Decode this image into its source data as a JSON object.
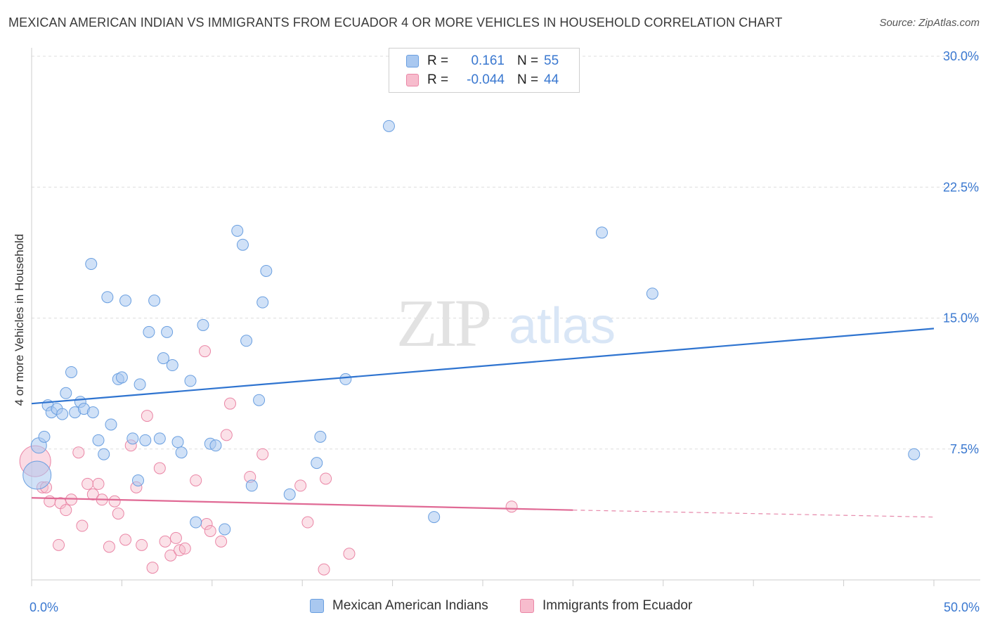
{
  "title": "MEXICAN AMERICAN INDIAN VS IMMIGRANTS FROM ECUADOR 4 OR MORE VEHICLES IN HOUSEHOLD CORRELATION CHART",
  "source": "Source: ZipAtlas.com",
  "watermark": {
    "zip": "ZIP",
    "atlas": "atlas"
  },
  "legend": {
    "rows": [
      {
        "r_label": "R =",
        "r_value": "0.161",
        "n_label": "N =",
        "n_value": "55",
        "color": "#a9c8f0",
        "border": "#6a9fe0"
      },
      {
        "r_label": "R =",
        "r_value": "-0.044",
        "n_label": "N =",
        "n_value": "44",
        "color": "#f7bccd",
        "border": "#ea86a6"
      }
    ]
  },
  "colors": {
    "blue_fill": "#a9c8f0",
    "blue_stroke": "#6a9fe0",
    "blue_line": "#2f74d0",
    "pink_fill": "#f7bccd",
    "pink_stroke": "#ea86a6",
    "pink_line": "#e06a95",
    "axis_text": "#3a78d0",
    "grid": "#dddddd"
  },
  "chart_data": {
    "type": "scatter",
    "title": "MEXICAN AMERICAN INDIAN VS IMMIGRANTS FROM ECUADOR 4 OR MORE VEHICLES IN HOUSEHOLD CORRELATION CHART",
    "xlabel": "",
    "ylabel": "4 or more Vehicles in Household",
    "xlim": [
      0,
      50
    ],
    "ylim": [
      0,
      30
    ],
    "x_ticks": [
      0,
      50
    ],
    "x_tick_labels": [
      "0.0%",
      "50.0%"
    ],
    "y_ticks": [
      7.5,
      15,
      22.5,
      30
    ],
    "y_tick_labels": [
      "7.5%",
      "15.0%",
      "22.5%",
      "30.0%"
    ],
    "grid": true,
    "legend_position": "top-center",
    "series": [
      {
        "name": "Mexican American Indians",
        "color": "#a9c8f0",
        "trend": {
          "x": [
            0,
            50
          ],
          "y": [
            10.1,
            14.4
          ]
        },
        "points": [
          [
            0.4,
            7.7
          ],
          [
            0.3,
            6.0
          ],
          [
            0.7,
            8.2
          ],
          [
            0.9,
            10.0
          ],
          [
            1.1,
            9.6
          ],
          [
            1.4,
            9.8
          ],
          [
            1.7,
            9.5
          ],
          [
            1.9,
            10.7
          ],
          [
            2.2,
            11.9
          ],
          [
            2.4,
            9.6
          ],
          [
            2.7,
            10.2
          ],
          [
            2.9,
            9.8
          ],
          [
            3.4,
            9.6
          ],
          [
            3.3,
            18.1
          ],
          [
            3.7,
            8.0
          ],
          [
            4.0,
            7.2
          ],
          [
            4.2,
            16.2
          ],
          [
            4.4,
            8.9
          ],
          [
            4.8,
            11.5
          ],
          [
            5.0,
            11.6
          ],
          [
            5.2,
            16.0
          ],
          [
            5.6,
            8.1
          ],
          [
            5.9,
            5.7
          ],
          [
            6.0,
            11.2
          ],
          [
            6.3,
            8.0
          ],
          [
            6.5,
            14.2
          ],
          [
            6.8,
            16.0
          ],
          [
            7.1,
            8.1
          ],
          [
            7.3,
            12.7
          ],
          [
            7.5,
            14.2
          ],
          [
            7.8,
            12.3
          ],
          [
            8.1,
            7.9
          ],
          [
            8.3,
            7.3
          ],
          [
            8.8,
            11.4
          ],
          [
            9.1,
            3.3
          ],
          [
            9.5,
            14.6
          ],
          [
            9.9,
            7.8
          ],
          [
            10.2,
            7.7
          ],
          [
            10.7,
            2.9
          ],
          [
            11.4,
            20.0
          ],
          [
            11.7,
            19.2
          ],
          [
            11.9,
            13.7
          ],
          [
            12.2,
            5.4
          ],
          [
            12.6,
            10.3
          ],
          [
            12.8,
            15.9
          ],
          [
            13.0,
            17.7
          ],
          [
            14.3,
            4.9
          ],
          [
            15.8,
            6.7
          ],
          [
            16.0,
            8.2
          ],
          [
            17.4,
            11.5
          ],
          [
            19.8,
            26.0
          ],
          [
            22.3,
            3.6
          ],
          [
            31.6,
            19.9
          ],
          [
            34.4,
            16.4
          ],
          [
            48.9,
            7.2
          ]
        ]
      },
      {
        "name": "Immigrants from Ecuador",
        "color": "#f7bccd",
        "trend": {
          "x": [
            0,
            30
          ],
          "y": [
            4.7,
            4.0
          ]
        },
        "trend_dashed": {
          "x": [
            30,
            50
          ],
          "y": [
            4.0,
            3.6
          ]
        },
        "points": [
          [
            0.2,
            6.8
          ],
          [
            0.6,
            5.3
          ],
          [
            0.8,
            5.3
          ],
          [
            1.0,
            4.5
          ],
          [
            1.5,
            2.0
          ],
          [
            1.6,
            4.4
          ],
          [
            1.9,
            4.0
          ],
          [
            2.2,
            4.6
          ],
          [
            2.6,
            7.3
          ],
          [
            2.8,
            3.1
          ],
          [
            3.1,
            5.5
          ],
          [
            3.4,
            4.9
          ],
          [
            3.7,
            5.5
          ],
          [
            3.9,
            4.6
          ],
          [
            4.3,
            1.9
          ],
          [
            4.6,
            4.5
          ],
          [
            4.8,
            3.8
          ],
          [
            5.2,
            2.3
          ],
          [
            5.5,
            7.7
          ],
          [
            5.8,
            5.3
          ],
          [
            6.1,
            2.0
          ],
          [
            6.4,
            9.4
          ],
          [
            6.7,
            0.7
          ],
          [
            7.1,
            6.4
          ],
          [
            7.4,
            2.2
          ],
          [
            7.7,
            1.4
          ],
          [
            8.0,
            2.4
          ],
          [
            8.2,
            1.7
          ],
          [
            8.5,
            1.8
          ],
          [
            9.1,
            5.7
          ],
          [
            9.6,
            13.1
          ],
          [
            9.7,
            3.2
          ],
          [
            9.9,
            2.8
          ],
          [
            10.5,
            2.2
          ],
          [
            10.8,
            8.3
          ],
          [
            11.0,
            10.1
          ],
          [
            12.1,
            5.9
          ],
          [
            12.8,
            7.2
          ],
          [
            14.9,
            5.4
          ],
          [
            15.3,
            3.3
          ],
          [
            16.2,
            0.6
          ],
          [
            16.3,
            5.8
          ],
          [
            17.6,
            1.5
          ],
          [
            26.6,
            4.2
          ]
        ]
      }
    ]
  },
  "bottom_legend": [
    {
      "label": "Mexican American Indians",
      "color": "#a9c8f0",
      "border": "#6a9fe0"
    },
    {
      "label": "Immigrants from Ecuador",
      "color": "#f7bccd",
      "border": "#ea86a6"
    }
  ]
}
